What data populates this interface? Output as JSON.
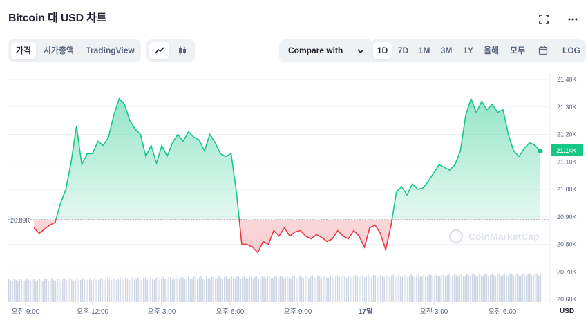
{
  "header": {
    "title": "Bitcoin 대 USD 차트"
  },
  "icons": {
    "fullscreen": "fullscreen-icon",
    "more": "more-icon",
    "calendar": "calendar-icon",
    "line_chart": "line-chart-icon",
    "candle_chart": "candlestick-icon",
    "chevron": "chevron-down-icon"
  },
  "tabs": {
    "price": "가격",
    "market_cap": "시가총액",
    "tradingview": "TradingView"
  },
  "compare": {
    "label": "Compare with"
  },
  "ranges": [
    "1D",
    "7D",
    "1M",
    "3M",
    "1Y",
    "올해",
    "모두"
  ],
  "active_range": "1D",
  "log_label": "LOG",
  "watermark": "CoinMarketCap",
  "colors": {
    "up": "#16c784",
    "down": "#ea3943",
    "accent": "#16c784"
  },
  "chart_data": {
    "type": "area",
    "baseline": 20890,
    "baseline_label": "20.89K",
    "current_label": "21.14K",
    "y_currency": "USD",
    "ylim": [
      20600,
      21400
    ],
    "y_ticks": [
      "21.40K",
      "21.30K",
      "21.20K",
      "21.10K",
      "21.00K",
      "20.90K",
      "20.80K",
      "20.70K",
      "20.60K"
    ],
    "x_ticks": [
      "오전 9:00",
      "오후 12:00",
      "오후 3:00",
      "오후 6:00",
      "오후 9:00",
      "17일",
      "오전 3:00",
      "오전 6:00"
    ],
    "price": [
      [
        0.0,
        20860
      ],
      [
        0.25,
        20840
      ],
      [
        0.5,
        20855
      ],
      [
        0.75,
        20870
      ],
      [
        1.0,
        20880
      ],
      [
        1.25,
        20950
      ],
      [
        1.5,
        21000
      ],
      [
        1.75,
        21100
      ],
      [
        2.0,
        21230
      ],
      [
        2.25,
        21090
      ],
      [
        2.5,
        21130
      ],
      [
        2.75,
        21130
      ],
      [
        3.0,
        21175
      ],
      [
        3.25,
        21160
      ],
      [
        3.5,
        21190
      ],
      [
        3.75,
        21270
      ],
      [
        4.0,
        21330
      ],
      [
        4.25,
        21310
      ],
      [
        4.5,
        21250
      ],
      [
        4.75,
        21220
      ],
      [
        5.0,
        21200
      ],
      [
        5.25,
        21120
      ],
      [
        5.5,
        21160
      ],
      [
        5.75,
        21095
      ],
      [
        6.0,
        21160
      ],
      [
        6.25,
        21120
      ],
      [
        6.5,
        21170
      ],
      [
        6.75,
        21200
      ],
      [
        7.0,
        21175
      ],
      [
        7.25,
        21210
      ],
      [
        7.5,
        21190
      ],
      [
        7.75,
        21180
      ],
      [
        8.0,
        21140
      ],
      [
        8.25,
        21200
      ],
      [
        8.5,
        21170
      ],
      [
        8.75,
        21130
      ],
      [
        9.0,
        21120
      ],
      [
        9.25,
        21130
      ],
      [
        9.5,
        20990
      ],
      [
        9.75,
        20800
      ],
      [
        10.0,
        20800
      ],
      [
        10.25,
        20790
      ],
      [
        10.5,
        20770
      ],
      [
        10.75,
        20810
      ],
      [
        11.0,
        20800
      ],
      [
        11.25,
        20850
      ],
      [
        11.5,
        20830
      ],
      [
        11.75,
        20860
      ],
      [
        12.0,
        20830
      ],
      [
        12.25,
        20845
      ],
      [
        12.5,
        20850
      ],
      [
        12.75,
        20830
      ],
      [
        13.0,
        20820
      ],
      [
        13.25,
        20835
      ],
      [
        13.5,
        20825
      ],
      [
        13.75,
        20810
      ],
      [
        14.0,
        20820
      ],
      [
        14.25,
        20850
      ],
      [
        14.5,
        20830
      ],
      [
        14.75,
        20820
      ],
      [
        15.0,
        20850
      ],
      [
        15.25,
        20830
      ],
      [
        15.5,
        20790
      ],
      [
        15.75,
        20860
      ],
      [
        16.0,
        20870
      ],
      [
        16.25,
        20840
      ],
      [
        16.5,
        20780
      ],
      [
        16.75,
        20870
      ],
      [
        17.0,
        20990
      ],
      [
        17.25,
        21010
      ],
      [
        17.5,
        20980
      ],
      [
        17.75,
        21020
      ],
      [
        18.0,
        21000
      ],
      [
        18.25,
        21005
      ],
      [
        18.5,
        21030
      ],
      [
        18.75,
        21060
      ],
      [
        19.0,
        21090
      ],
      [
        19.25,
        21080
      ],
      [
        19.5,
        21070
      ],
      [
        19.75,
        21090
      ],
      [
        20.0,
        21140
      ],
      [
        20.25,
        21270
      ],
      [
        20.5,
        21330
      ],
      [
        20.75,
        21280
      ],
      [
        21.0,
        21320
      ],
      [
        21.25,
        21290
      ],
      [
        21.5,
        21310
      ],
      [
        21.75,
        21280
      ],
      [
        22.0,
        21290
      ],
      [
        22.25,
        21200
      ],
      [
        22.5,
        21140
      ],
      [
        22.75,
        21120
      ],
      [
        23.0,
        21150
      ],
      [
        23.25,
        21170
      ],
      [
        23.5,
        21160
      ],
      [
        23.75,
        21140
      ]
    ],
    "volume_note": "volume bars shown beneath price line"
  }
}
